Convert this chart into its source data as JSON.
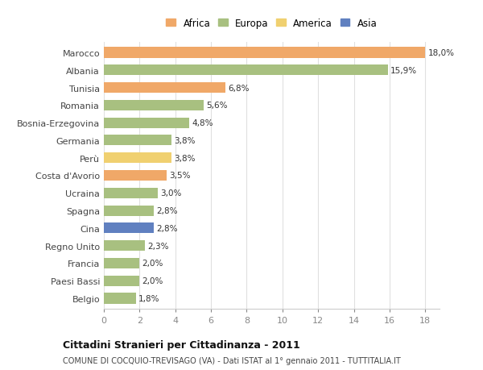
{
  "countries": [
    "Marocco",
    "Albania",
    "Tunisia",
    "Romania",
    "Bosnia-Erzegovina",
    "Germania",
    "Perù",
    "Costa d'Avorio",
    "Ucraina",
    "Spagna",
    "Cina",
    "Regno Unito",
    "Francia",
    "Paesi Bassi",
    "Belgio"
  ],
  "values": [
    18.0,
    15.9,
    6.8,
    5.6,
    4.8,
    3.8,
    3.8,
    3.5,
    3.0,
    2.8,
    2.8,
    2.3,
    2.0,
    2.0,
    1.8
  ],
  "labels": [
    "18,0%",
    "15,9%",
    "6,8%",
    "5,6%",
    "4,8%",
    "3,8%",
    "3,8%",
    "3,5%",
    "3,0%",
    "2,8%",
    "2,8%",
    "2,3%",
    "2,0%",
    "2,0%",
    "1,8%"
  ],
  "continents": [
    "Africa",
    "Europa",
    "Africa",
    "Europa",
    "Europa",
    "Europa",
    "America",
    "Africa",
    "Europa",
    "Europa",
    "Asia",
    "Europa",
    "Europa",
    "Europa",
    "Europa"
  ],
  "colors": {
    "Africa": "#F0A868",
    "Europa": "#A8C080",
    "America": "#F0D070",
    "Asia": "#6080C0"
  },
  "legend_order": [
    "Africa",
    "Europa",
    "America",
    "Asia"
  ],
  "title": "Cittadini Stranieri per Cittadinanza - 2011",
  "subtitle": "COMUNE DI COCQUIO-TREVISAGO (VA) - Dati ISTAT al 1° gennaio 2011 - TUTTITALIA.IT",
  "xlim": [
    0,
    18
  ],
  "xticks": [
    0,
    2,
    4,
    6,
    8,
    10,
    12,
    14,
    16,
    18
  ],
  "bg_color": "#ffffff",
  "grid_color": "#e0e0e0"
}
